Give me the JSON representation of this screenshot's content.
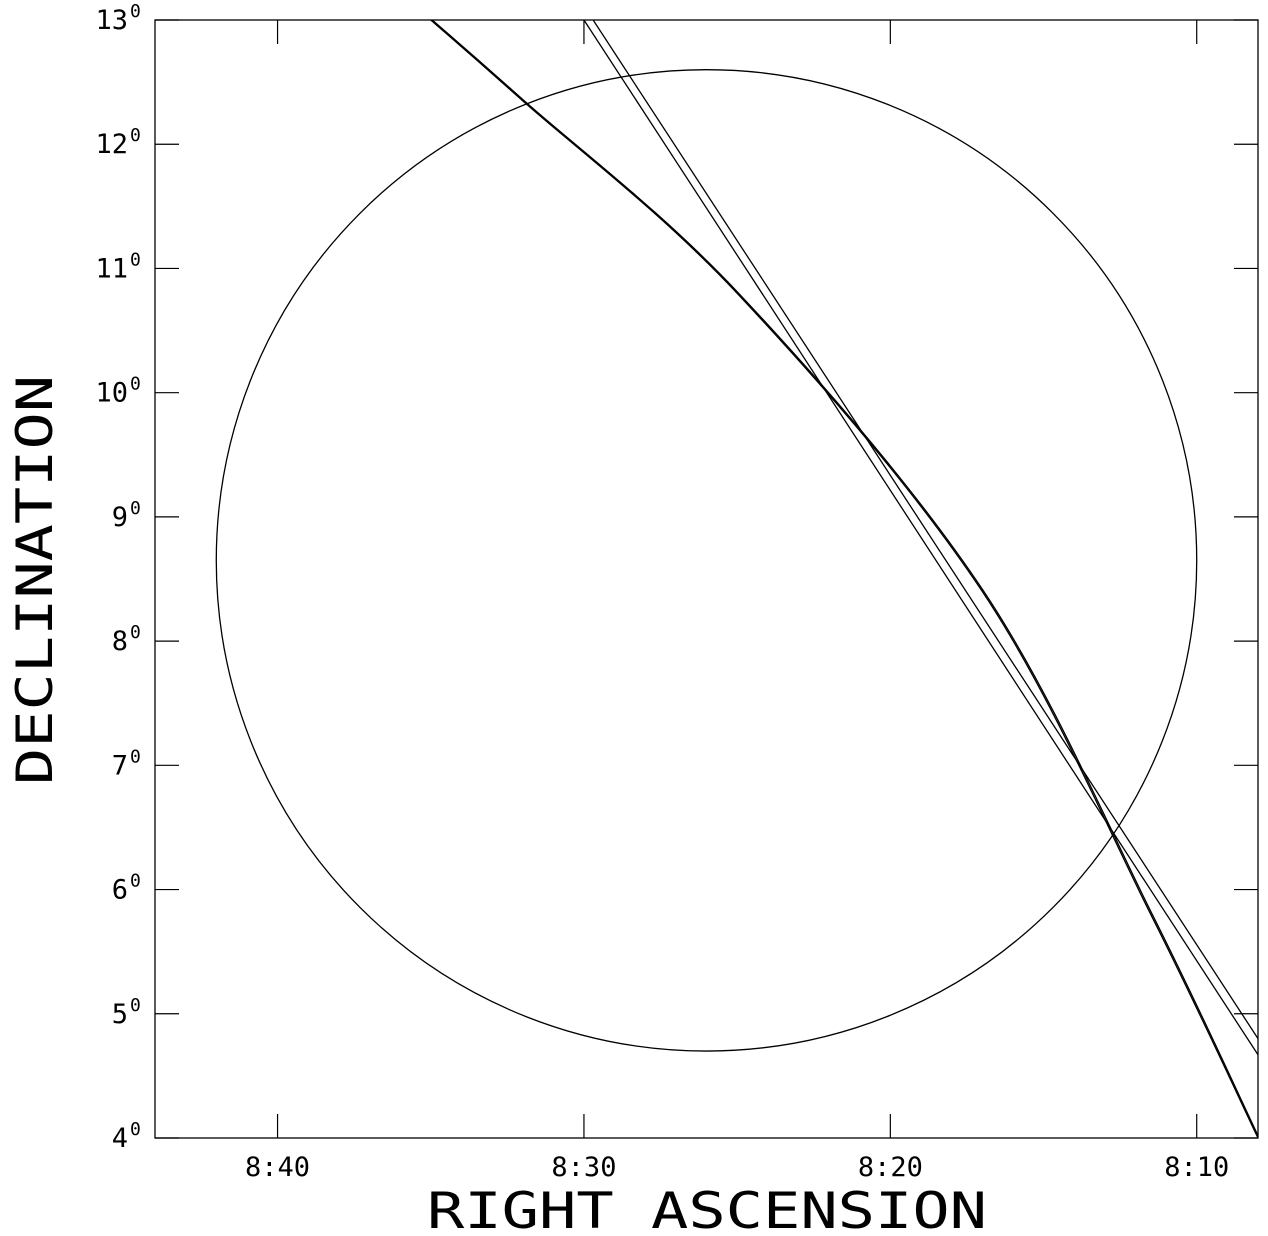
{
  "chart_data": {
    "type": "line",
    "xlabel": "RIGHT ASCENSION",
    "ylabel": "DECLINATION",
    "x_unit": "hours:minutes (RA)",
    "xlim": [
      "8:44",
      "8:08"
    ],
    "x_reversed": true,
    "ylim": [
      4,
      13
    ],
    "x_ticks": [
      "8:40",
      "8:30",
      "8:20",
      "8:10"
    ],
    "y_ticks": [
      {
        "value": 4,
        "label": "4",
        "sup": "0"
      },
      {
        "value": 5,
        "label": "5",
        "sup": "0"
      },
      {
        "value": 6,
        "label": "6",
        "sup": "0"
      },
      {
        "value": 7,
        "label": "7",
        "sup": "0"
      },
      {
        "value": 8,
        "label": "8",
        "sup": "0"
      },
      {
        "value": 9,
        "label": "9",
        "sup": "0"
      },
      {
        "value": 10,
        "label": "10",
        "sup": "0"
      },
      {
        "value": 11,
        "label": "11",
        "sup": "0"
      },
      {
        "value": 12,
        "label": "12",
        "sup": "0"
      },
      {
        "value": 13,
        "label": "13",
        "sup": "0"
      }
    ],
    "circle": {
      "ra_center": "8:26",
      "dec_center": 8.65,
      "ra_left": "8:42",
      "ra_right": "8:10",
      "dec_top": 12.6,
      "dec_bottom": 4.7
    },
    "series": [
      {
        "points": [
          [
            "8:35",
            13.0
          ],
          [
            "8:32",
            12.35
          ],
          [
            "8:25",
            10.8
          ],
          [
            "8:17",
            8.4
          ],
          [
            "8:11.5",
            5.8
          ],
          [
            "8:08",
            4.0
          ]
        ]
      },
      {
        "points": [
          [
            "8:34.95",
            13.0
          ],
          [
            "8:31.95",
            12.35
          ],
          [
            "8:24.95",
            10.8
          ],
          [
            "8:16.95",
            8.4
          ],
          [
            "8:11.45",
            5.8
          ],
          [
            "8:08",
            4.02
          ]
        ]
      },
      {
        "points": [
          [
            "8:30",
            13.0
          ],
          [
            "8:08",
            4.67
          ]
        ]
      },
      {
        "points": [
          [
            "8:29.7",
            13.0
          ],
          [
            "8:08",
            4.8
          ]
        ]
      }
    ],
    "grid": false,
    "legend": "none"
  }
}
